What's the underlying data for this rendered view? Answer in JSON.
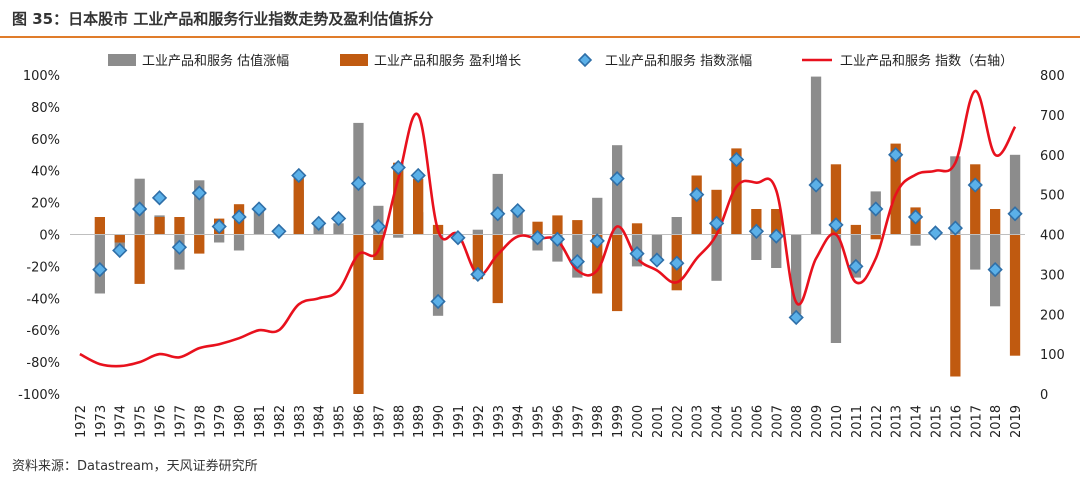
{
  "header": {
    "title": "图 35：日本股市 工业产品和服务行业指数走势及盈利估值拆分"
  },
  "footer": {
    "source": "资料来源：Datastream，天风证券研究所"
  },
  "colors": {
    "valuation": "#8c8c8c",
    "earnings": "#c05a10",
    "marker_fill": "#5bb0e8",
    "marker_stroke": "#2f6fa8",
    "index_line": "#e8111d",
    "accent": "#e07c2a"
  },
  "chart_data": {
    "type": "bar",
    "title": "",
    "categories": [
      "1972",
      "1973",
      "1974",
      "1975",
      "1976",
      "1977",
      "1978",
      "1979",
      "1980",
      "1981",
      "1982",
      "1983",
      "1984",
      "1985",
      "1986",
      "1987",
      "1988",
      "1989",
      "1990",
      "1991",
      "1992",
      "1993",
      "1994",
      "1995",
      "1996",
      "1997",
      "1998",
      "1999",
      "2000",
      "2001",
      "2002",
      "2003",
      "2004",
      "2005",
      "2006",
      "2007",
      "2008",
      "2009",
      "2010",
      "2011",
      "2012",
      "2013",
      "2014",
      "2015",
      "2016",
      "2017",
      "2018",
      "2019"
    ],
    "y_left": {
      "ylim": [
        -1.0,
        1.0
      ],
      "ticks": [
        1.0,
        0.8,
        0.6,
        0.4,
        0.2,
        0.0,
        -0.2,
        -0.4,
        -0.6,
        -0.8,
        -1.0
      ],
      "tick_labels": [
        "100%",
        "80%",
        "60%",
        "40%",
        "20%",
        "0%",
        "-20%",
        "-40%",
        "-60%",
        "-80%",
        "-100%"
      ]
    },
    "y_right": {
      "ylim": [
        0,
        800
      ],
      "ticks": [
        800,
        700,
        600,
        500,
        400,
        300,
        200,
        100,
        0
      ],
      "tick_labels": [
        "800",
        "700",
        "600",
        "500",
        "400",
        "300",
        "200",
        "100",
        "0"
      ]
    },
    "series": [
      {
        "name": "工业产品和服务 估值涨幅",
        "type": "bar",
        "axis": "left",
        "values": [
          null,
          -0.37,
          -0.1,
          0.35,
          0.12,
          -0.22,
          0.34,
          -0.05,
          -0.1,
          0.17,
          0.03,
          0.28,
          0.07,
          0.07,
          0.7,
          0.18,
          -0.02,
          0.14,
          -0.51,
          -0.03,
          0.03,
          0.38,
          0.16,
          -0.1,
          -0.17,
          -0.27,
          0.23,
          0.56,
          -0.2,
          -0.17,
          0.11,
          0.25,
          -0.29,
          0.3,
          -0.16,
          -0.21,
          -0.5,
          0.99,
          -0.68,
          -0.27,
          0.27,
          0.28,
          -0.07,
          0.02,
          0.49,
          -0.22,
          -0.45,
          0.5
        ]
      },
      {
        "name": "工业产品和服务 盈利增长",
        "type": "bar",
        "axis": "left",
        "values": [
          null,
          0.11,
          -0.05,
          -0.31,
          0.11,
          0.11,
          -0.12,
          0.1,
          0.19,
          0.0,
          0.0,
          0.36,
          0.0,
          0.0,
          -1.0,
          -0.16,
          0.45,
          0.35,
          0.06,
          0.0,
          -0.28,
          -0.43,
          0.0,
          0.08,
          0.12,
          0.09,
          -0.37,
          -0.48,
          0.07,
          0.0,
          -0.35,
          0.37,
          0.28,
          0.54,
          0.16,
          0.16,
          0.0,
          0.0,
          0.44,
          0.06,
          -0.03,
          0.57,
          0.17,
          0.0,
          -0.89,
          0.44,
          0.16,
          -0.76
        ]
      },
      {
        "name": "工业产品和服务 指数涨幅",
        "type": "scatter",
        "axis": "left",
        "values": [
          null,
          -0.22,
          -0.1,
          0.16,
          0.23,
          -0.08,
          0.26,
          0.05,
          0.11,
          0.16,
          0.02,
          0.37,
          0.07,
          0.1,
          0.32,
          0.05,
          0.42,
          0.37,
          -0.42,
          -0.02,
          -0.25,
          0.13,
          0.15,
          -0.02,
          -0.03,
          -0.17,
          -0.04,
          0.35,
          -0.12,
          -0.16,
          -0.18,
          0.25,
          0.07,
          0.47,
          0.02,
          -0.01,
          -0.52,
          0.31,
          0.06,
          -0.2,
          0.16,
          0.5,
          0.11,
          0.01,
          0.04,
          0.31,
          -0.22,
          0.13
        ]
      },
      {
        "name": "工业产品和服务 指数（右轴）",
        "type": "line",
        "axis": "right",
        "values": [
          100,
          75,
          70,
          80,
          100,
          92,
          115,
          125,
          140,
          160,
          160,
          225,
          240,
          260,
          350,
          360,
          540,
          700,
          410,
          400,
          300,
          350,
          395,
          390,
          385,
          310,
          310,
          420,
          340,
          310,
          280,
          340,
          400,
          520,
          530,
          510,
          230,
          340,
          400,
          280,
          340,
          500,
          550,
          560,
          580,
          760,
          600,
          670
        ]
      }
    ]
  }
}
